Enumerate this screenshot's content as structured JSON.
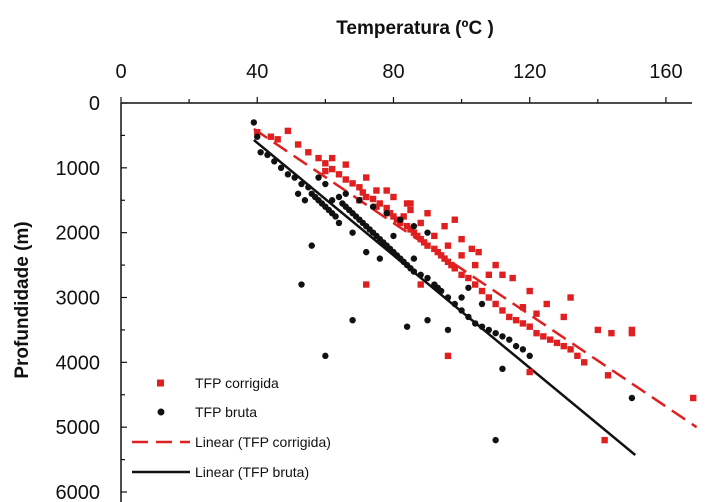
{
  "chart_data": {
    "type": "scatter",
    "title": "",
    "xlabel": "Temperatura (ºC )",
    "ylabel": "Profundidade (m)",
    "xlim": [
      0,
      170
    ],
    "ylim": [
      0,
      6000
    ],
    "y_inverted": true,
    "x_axis_position": "top",
    "x_ticks": [
      "0",
      "40",
      "80",
      "120",
      "160"
    ],
    "y_ticks": [
      "0",
      "1000",
      "2000",
      "3000",
      "4000",
      "5000",
      "6000"
    ],
    "legend_placement": "bottom-left",
    "grid": false,
    "series": [
      {
        "name": "TFP corrigida",
        "kind": "points",
        "marker": "square",
        "color": "#e02020",
        "points": [
          [
            40,
            450
          ],
          [
            44,
            520
          ],
          [
            46,
            560
          ],
          [
            49,
            430
          ],
          [
            52,
            640
          ],
          [
            55,
            760
          ],
          [
            58,
            850
          ],
          [
            60,
            930
          ],
          [
            62,
            1020
          ],
          [
            64,
            1100
          ],
          [
            66,
            1180
          ],
          [
            68,
            1240
          ],
          [
            70,
            1300
          ],
          [
            71,
            1380
          ],
          [
            72,
            1450
          ],
          [
            74,
            1480
          ],
          [
            75,
            1600
          ],
          [
            76,
            1550
          ],
          [
            78,
            1620
          ],
          [
            79,
            1700
          ],
          [
            80,
            1750
          ],
          [
            81,
            1800
          ],
          [
            82,
            1850
          ],
          [
            83,
            1750
          ],
          [
            84,
            1900
          ],
          [
            85,
            1950
          ],
          [
            86,
            2000
          ],
          [
            87,
            2050
          ],
          [
            88,
            2100
          ],
          [
            89,
            2150
          ],
          [
            90,
            2200
          ],
          [
            92,
            2250
          ],
          [
            93,
            2300
          ],
          [
            94,
            2350
          ],
          [
            95,
            2400
          ],
          [
            96,
            2450
          ],
          [
            97,
            2500
          ],
          [
            98,
            2550
          ],
          [
            100,
            2650
          ],
          [
            102,
            2700
          ],
          [
            104,
            2800
          ],
          [
            106,
            2900
          ],
          [
            108,
            3000
          ],
          [
            110,
            3100
          ],
          [
            112,
            3200
          ],
          [
            114,
            3300
          ],
          [
            116,
            3350
          ],
          [
            118,
            3400
          ],
          [
            120,
            3450
          ],
          [
            122,
            3550
          ],
          [
            124,
            3600
          ],
          [
            126,
            3650
          ],
          [
            128,
            3700
          ],
          [
            130,
            3750
          ],
          [
            132,
            3800
          ],
          [
            134,
            3900
          ],
          [
            136,
            4000
          ],
          [
            140,
            3500
          ],
          [
            144,
            3550
          ],
          [
            150,
            3550
          ],
          [
            70,
            1500
          ],
          [
            75,
            1350
          ],
          [
            80,
            1450
          ],
          [
            85,
            1650
          ],
          [
            88,
            1850
          ],
          [
            92,
            2050
          ],
          [
            96,
            2200
          ],
          [
            100,
            2350
          ],
          [
            104,
            2500
          ],
          [
            108,
            2650
          ],
          [
            85,
            1550
          ],
          [
            90,
            1700
          ],
          [
            95,
            1900
          ],
          [
            100,
            2100
          ],
          [
            105,
            2300
          ],
          [
            110,
            2500
          ],
          [
            115,
            2700
          ],
          [
            120,
            2900
          ],
          [
            125,
            3100
          ],
          [
            130,
            3300
          ],
          [
            62,
            850
          ],
          [
            66,
            950
          ],
          [
            72,
            1150
          ],
          [
            78,
            1350
          ],
          [
            84,
            1550
          ],
          [
            98,
            1800
          ],
          [
            103,
            2250
          ],
          [
            112,
            2650
          ],
          [
            118,
            3150
          ],
          [
            122,
            3250
          ],
          [
            88,
            2800
          ],
          [
            72,
            2800
          ],
          [
            96,
            3900
          ],
          [
            120,
            4150
          ],
          [
            143,
            4200
          ],
          [
            142,
            5200
          ],
          [
            168,
            4550
          ],
          [
            150,
            3500
          ],
          [
            132,
            3000
          ],
          [
            60,
            1050
          ]
        ]
      },
      {
        "name": "TFP bruta",
        "kind": "points",
        "marker": "circle",
        "color": "#111111",
        "points": [
          [
            39,
            300
          ],
          [
            40,
            520
          ],
          [
            41,
            760
          ],
          [
            43,
            800
          ],
          [
            45,
            900
          ],
          [
            47,
            1000
          ],
          [
            49,
            1100
          ],
          [
            51,
            1150
          ],
          [
            53,
            1250
          ],
          [
            55,
            1300
          ],
          [
            56,
            1400
          ],
          [
            57,
            1450
          ],
          [
            58,
            1500
          ],
          [
            59,
            1550
          ],
          [
            60,
            1600
          ],
          [
            61,
            1650
          ],
          [
            62,
            1700
          ],
          [
            63,
            1750
          ],
          [
            64,
            1450
          ],
          [
            65,
            1550
          ],
          [
            66,
            1600
          ],
          [
            67,
            1650
          ],
          [
            68,
            1700
          ],
          [
            69,
            1750
          ],
          [
            70,
            1800
          ],
          [
            71,
            1850
          ],
          [
            72,
            1900
          ],
          [
            73,
            1950
          ],
          [
            74,
            2000
          ],
          [
            75,
            2050
          ],
          [
            76,
            2100
          ],
          [
            77,
            2150
          ],
          [
            78,
            2200
          ],
          [
            79,
            2250
          ],
          [
            80,
            2300
          ],
          [
            81,
            2350
          ],
          [
            82,
            2400
          ],
          [
            83,
            2450
          ],
          [
            84,
            2500
          ],
          [
            85,
            2550
          ],
          [
            86,
            2600
          ],
          [
            88,
            2650
          ],
          [
            90,
            2700
          ],
          [
            92,
            2800
          ],
          [
            94,
            2900
          ],
          [
            96,
            3000
          ],
          [
            98,
            3100
          ],
          [
            100,
            3200
          ],
          [
            102,
            3300
          ],
          [
            104,
            3400
          ],
          [
            106,
            3450
          ],
          [
            108,
            3500
          ],
          [
            110,
            3550
          ],
          [
            112,
            3600
          ],
          [
            114,
            3650
          ],
          [
            116,
            3750
          ],
          [
            118,
            3800
          ],
          [
            120,
            3900
          ],
          [
            60,
            1250
          ],
          [
            58,
            1150
          ],
          [
            52,
            1400
          ],
          [
            54,
            1500
          ],
          [
            62,
            1500
          ],
          [
            66,
            1400
          ],
          [
            70,
            1500
          ],
          [
            74,
            1600
          ],
          [
            78,
            1700
          ],
          [
            82,
            1800
          ],
          [
            86,
            1900
          ],
          [
            90,
            2000
          ],
          [
            56,
            2200
          ],
          [
            53,
            2800
          ],
          [
            60,
            3900
          ],
          [
            68,
            3350
          ],
          [
            84,
            3450
          ],
          [
            110,
            5200
          ],
          [
            112,
            4100
          ],
          [
            150,
            4550
          ],
          [
            96,
            3500
          ],
          [
            90,
            3350
          ],
          [
            100,
            3000
          ],
          [
            106,
            3100
          ],
          [
            86,
            2400
          ],
          [
            80,
            2050
          ],
          [
            76,
            2400
          ],
          [
            72,
            2300
          ],
          [
            68,
            2000
          ],
          [
            64,
            1850
          ],
          [
            93,
            2850
          ],
          [
            102,
            2850
          ]
        ]
      },
      {
        "name": "Linear (TFP corrigida)",
        "kind": "line",
        "dash": "dashed",
        "color": "#e02020",
        "points": [
          [
            39,
            400
          ],
          [
            169,
            5000
          ]
        ]
      },
      {
        "name": "Linear (TFP bruta)",
        "kind": "line",
        "dash": "solid",
        "color": "#111111",
        "points": [
          [
            39,
            570
          ],
          [
            151,
            5430
          ]
        ]
      }
    ]
  }
}
